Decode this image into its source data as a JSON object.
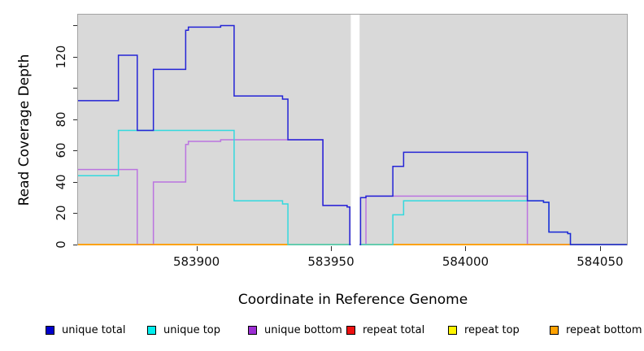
{
  "figure": {
    "y_axis_title": "Read Coverage Depth",
    "x_axis_title": "Coordinate in Reference Genome"
  },
  "chart_data": {
    "type": "line",
    "subtype": "step-coverage",
    "title": "",
    "xlabel": "Coordinate in Reference Genome",
    "ylabel": "Read Coverage Depth",
    "xlim": [
      583856,
      584060
    ],
    "ylim": [
      0,
      147
    ],
    "x_ticks": [
      583900,
      583950,
      584000,
      584050
    ],
    "y_ticks": [
      0,
      20,
      40,
      60,
      80,
      100,
      120,
      140
    ],
    "y_tick_labels_shown": [
      0,
      20,
      40,
      60,
      80,
      120
    ],
    "grid": false,
    "plot_bg": "#d9d9d9",
    "legend_position": "bottom",
    "no_data_gap_x": [
      583957,
      583961
    ],
    "draw_order": [
      3,
      4,
      2,
      5,
      1,
      0
    ],
    "series": [
      {
        "name": "unique total",
        "line_color": "#2424d6",
        "swatch_color": "#0000cc",
        "steps": [
          [
            583856,
            92
          ],
          [
            583871,
            121
          ],
          [
            583878,
            73
          ],
          [
            583884,
            112
          ],
          [
            583896,
            137
          ],
          [
            583897,
            139
          ],
          [
            583909,
            140
          ],
          [
            583914,
            95
          ],
          [
            583932,
            93
          ],
          [
            583934,
            67
          ],
          [
            583947,
            25
          ],
          [
            583956,
            24
          ],
          [
            583957,
            0
          ],
          [
            583961,
            30
          ],
          [
            583963,
            31
          ],
          [
            583973,
            50
          ],
          [
            583977,
            59
          ],
          [
            584023,
            28
          ],
          [
            584029,
            27
          ],
          [
            584031,
            8
          ],
          [
            584038,
            7
          ],
          [
            584039,
            0
          ]
        ]
      },
      {
        "name": "unique top",
        "line_color": "#33d9de",
        "swatch_color": "#00eeee",
        "steps": [
          [
            583856,
            44
          ],
          [
            583871,
            73
          ],
          [
            583914,
            28
          ],
          [
            583932,
            26
          ],
          [
            583934,
            0
          ],
          [
            583973,
            19
          ],
          [
            583977,
            28
          ],
          [
            584029,
            27
          ],
          [
            584031,
            8
          ],
          [
            584038,
            7
          ],
          [
            584039,
            0
          ]
        ]
      },
      {
        "name": "unique bottom",
        "line_color": "#bb74e0",
        "swatch_color": "#9d2ed4",
        "steps": [
          [
            583856,
            48
          ],
          [
            583878,
            0
          ],
          [
            583884,
            40
          ],
          [
            583896,
            64
          ],
          [
            583897,
            66
          ],
          [
            583909,
            67
          ],
          [
            583947,
            25
          ],
          [
            583956,
            24
          ],
          [
            583957,
            0
          ],
          [
            583963,
            31
          ],
          [
            584023,
            0
          ]
        ]
      },
      {
        "name": "repeat total",
        "line_color": "#ee1111",
        "swatch_color": "#ee1111",
        "steps": [
          [
            583856,
            0
          ]
        ]
      },
      {
        "name": "repeat top",
        "line_color": "#ffee00",
        "swatch_color": "#fdf400",
        "steps": [
          [
            583856,
            0
          ]
        ]
      },
      {
        "name": "repeat bottom",
        "line_color": "#ff9e00",
        "swatch_color": "#ffa200",
        "steps": [
          [
            583856,
            0
          ]
        ]
      }
    ]
  },
  "legend": {
    "items": [
      {
        "label": "unique total"
      },
      {
        "label": "unique top"
      },
      {
        "label": "unique bottom"
      },
      {
        "label": "repeat total"
      },
      {
        "label": "repeat top"
      },
      {
        "label": "repeat bottom"
      }
    ]
  }
}
